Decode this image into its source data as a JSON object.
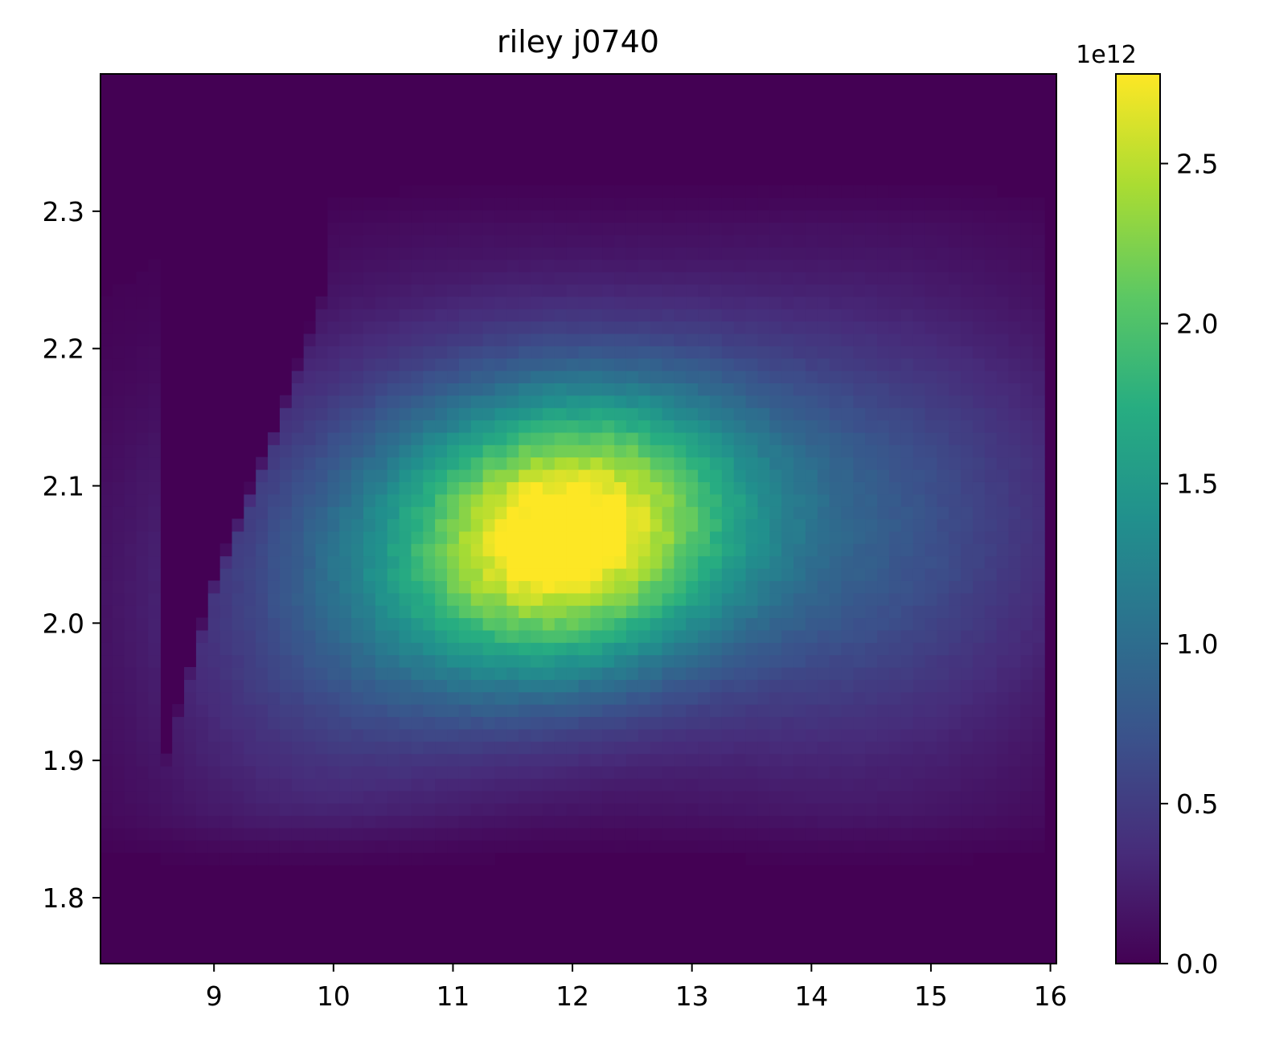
{
  "chart_data": {
    "type": "heatmap",
    "title": "riley j0740",
    "xlabel": "",
    "ylabel": "",
    "xlim": [
      8.05,
      16.05
    ],
    "ylim": [
      1.752,
      2.4
    ],
    "x_ticks": [
      {
        "value": 9,
        "label": "9"
      },
      {
        "value": 10,
        "label": "10"
      },
      {
        "value": 11,
        "label": "11"
      },
      {
        "value": 12,
        "label": "12"
      },
      {
        "value": 13,
        "label": "13"
      },
      {
        "value": 14,
        "label": "14"
      },
      {
        "value": 15,
        "label": "15"
      },
      {
        "value": 16,
        "label": "16"
      }
    ],
    "y_ticks": [
      {
        "value": 1.8,
        "label": "1.8"
      },
      {
        "value": 1.9,
        "label": "1.9"
      },
      {
        "value": 2.0,
        "label": "2.0"
      },
      {
        "value": 2.1,
        "label": "2.1"
      },
      {
        "value": 2.2,
        "label": "2.2"
      },
      {
        "value": 2.3,
        "label": "2.3"
      }
    ],
    "colorbar": {
      "colormap": "viridis",
      "range": [
        0,
        2.78
      ],
      "offset_label": "1e12",
      "ticks": [
        {
          "value": 0.0,
          "label": "0.0"
        },
        {
          "value": 0.5,
          "label": "0.5"
        },
        {
          "value": 1.0,
          "label": "1.0"
        },
        {
          "value": 1.5,
          "label": "1.5"
        },
        {
          "value": 2.0,
          "label": "2.0"
        },
        {
          "value": 2.5,
          "label": "2.5"
        }
      ]
    },
    "density_peak": {
      "x": 11.8,
      "y": 2.055,
      "value": 2.75
    },
    "density_model": [
      {
        "x": 11.95,
        "y": 2.065,
        "sx": 0.95,
        "sy": 0.07,
        "rho": 0.15,
        "amp": 2.2
      },
      {
        "x": 12.6,
        "y": 2.07,
        "sx": 2.2,
        "sy": 0.1,
        "rho": 0.1,
        "amp": 0.75
      },
      {
        "x": 10.2,
        "y": 2.02,
        "sx": 1.1,
        "sy": 0.13,
        "rho": 0.3,
        "amp": 0.45
      },
      {
        "x": 14.6,
        "y": 2.04,
        "sx": 1.2,
        "sy": 0.14,
        "rho": 0.0,
        "amp": 0.3
      }
    ],
    "support": {
      "left_edge": [
        [
          8.55,
          1.88
        ],
        [
          9.0,
          2.02
        ],
        [
          9.55,
          2.14
        ],
        [
          9.95,
          2.24
        ]
      ],
      "x_max": 15.95,
      "y_min": 1.86,
      "y_max": 2.29
    }
  }
}
